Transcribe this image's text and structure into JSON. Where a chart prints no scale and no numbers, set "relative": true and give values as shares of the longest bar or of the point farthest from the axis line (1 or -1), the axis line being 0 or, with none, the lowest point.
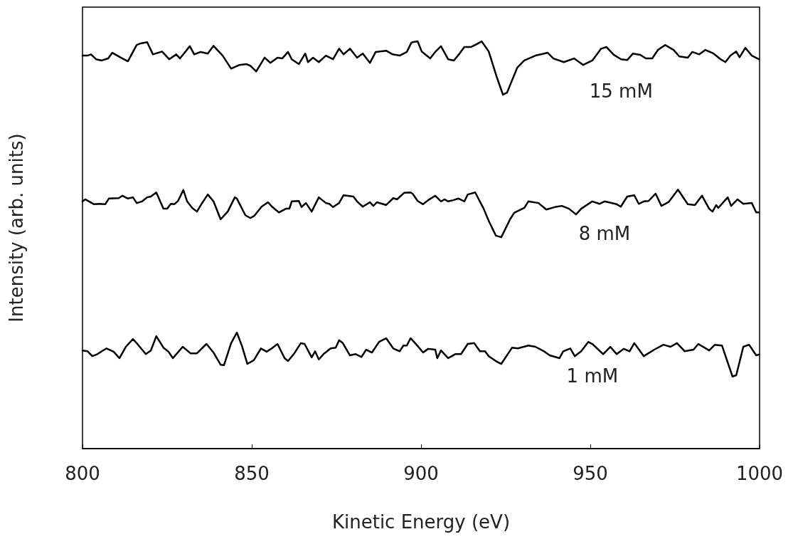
{
  "chart_data": {
    "type": "line",
    "xlabel": "Kinetic Energy (eV)",
    "ylabel": "Intensity (arb. units)",
    "relative": true,
    "marker": "none",
    "xlim": [
      800,
      1000
    ],
    "xticks": [
      800,
      850,
      900,
      950,
      1000
    ],
    "series": [
      {
        "name": "15 mM",
        "color": "#000000",
        "x": [
          800.0,
          801.5,
          802.5,
          804.0,
          805.7,
          807.6,
          808.8,
          811.3,
          813.4,
          816.0,
          817.2,
          819.1,
          820.8,
          823.5,
          825.6,
          827.7,
          828.8,
          831.7,
          833.0,
          834.9,
          837.0,
          838.7,
          841.4,
          843.9,
          846.4,
          848.5,
          849.6,
          851.3,
          853.8,
          855.5,
          857.6,
          859.0,
          860.7,
          861.8,
          863.9,
          865.8,
          866.6,
          868.1,
          869.8,
          871.9,
          874.0,
          875.8,
          877.1,
          879.0,
          881.1,
          882.8,
          884.9,
          886.6,
          889.7,
          891.6,
          893.7,
          895.8,
          897.1,
          897.5,
          899.0,
          900.2,
          902.7,
          904.2,
          905.9,
          908.0,
          909.7,
          911.1,
          912.8,
          914.7,
          916.0,
          917.9,
          920.0,
          922.3,
          924.2,
          925.4,
          928.4,
          930.5,
          933.8,
          937.4,
          939.1,
          942.2,
          945.2,
          947.9,
          950.6,
          953.2,
          954.8,
          956.9,
          959.1,
          960.9,
          962.6,
          964.7,
          966.4,
          968.3,
          970.0,
          972.1,
          974.6,
          976.3,
          978.8,
          980.1,
          982.2,
          984.0,
          986.4,
          988.5,
          989.9,
          991.4,
          993.1,
          994.1,
          995.8,
          997.7,
          999.8
        ],
        "values": [
          0.965,
          0.965,
          0.968,
          0.956,
          0.953,
          0.958,
          0.972,
          0.96,
          0.951,
          0.991,
          0.995,
          0.998,
          0.968,
          0.975,
          0.956,
          0.968,
          0.958,
          0.988,
          0.968,
          0.974,
          0.97,
          0.989,
          0.965,
          0.933,
          0.942,
          0.944,
          0.94,
          0.926,
          0.96,
          0.947,
          0.96,
          0.958,
          0.974,
          0.956,
          0.944,
          0.97,
          0.949,
          0.96,
          0.949,
          0.965,
          0.956,
          0.982,
          0.968,
          0.982,
          0.96,
          0.97,
          0.947,
          0.974,
          0.977,
          0.968,
          0.965,
          0.974,
          0.996,
          0.998,
          1.0,
          0.975,
          0.958,
          0.974,
          0.988,
          0.956,
          0.953,
          0.967,
          0.986,
          0.986,
          0.991,
          1.0,
          0.975,
          0.914,
          0.869,
          0.874,
          0.935,
          0.953,
          0.965,
          0.972,
          0.958,
          0.949,
          0.958,
          0.942,
          0.953,
          0.982,
          0.986,
          0.967,
          0.956,
          0.954,
          0.97,
          0.967,
          0.958,
          0.958,
          0.979,
          0.991,
          0.979,
          0.963,
          0.96,
          0.974,
          0.968,
          0.979,
          0.97,
          0.956,
          0.949,
          0.965,
          0.975,
          0.961,
          0.984,
          0.965,
          0.956
        ]
      },
      {
        "name": "8 mM",
        "color": "#000000",
        "x": [
          800.0,
          800.8,
          803.4,
          805.0,
          806.7,
          807.8,
          810.7,
          811.8,
          813.4,
          814.9,
          816.0,
          817.6,
          819.1,
          820.2,
          821.8,
          823.9,
          825.0,
          826.1,
          827.1,
          828.2,
          829.8,
          830.9,
          832.4,
          833.8,
          835.1,
          837.0,
          838.7,
          840.8,
          842.9,
          845.0,
          845.6,
          848.1,
          849.6,
          850.8,
          852.9,
          854.8,
          856.1,
          858.0,
          860.1,
          861.1,
          861.8,
          863.9,
          864.7,
          866.0,
          867.7,
          869.8,
          871.9,
          872.9,
          874.0,
          875.8,
          877.1,
          880.0,
          881.1,
          882.8,
          884.9,
          885.9,
          887.0,
          889.7,
          891.8,
          892.9,
          895.0,
          896.9,
          897.5,
          899.0,
          900.6,
          902.1,
          904.2,
          905.9,
          906.9,
          908.0,
          909.5,
          911.1,
          912.8,
          913.8,
          916.0,
          918.5,
          920.0,
          922.1,
          923.7,
          926.3,
          927.5,
          930.5,
          931.7,
          934.7,
          937.0,
          939.5,
          941.6,
          943.7,
          945.8,
          947.3,
          950.6,
          952.7,
          954.2,
          957.8,
          959.0,
          960.9,
          963.0,
          964.3,
          965.8,
          967.2,
          969.3,
          971.0,
          973.1,
          975.9,
          978.8,
          980.9,
          983.0,
          985.1,
          986.1,
          987.2,
          987.8,
          990.6,
          991.6,
          993.5,
          995.2,
          997.7,
          999.0,
          999.8
        ],
        "values": [
          0.607,
          0.612,
          0.6,
          0.601,
          0.6,
          0.614,
          0.615,
          0.621,
          0.614,
          0.617,
          0.603,
          0.607,
          0.617,
          0.619,
          0.629,
          0.589,
          0.589,
          0.601,
          0.6,
          0.608,
          0.635,
          0.607,
          0.591,
          0.582,
          0.6,
          0.624,
          0.607,
          0.563,
          0.582,
          0.617,
          0.614,
          0.573,
          0.566,
          0.572,
          0.594,
          0.605,
          0.593,
          0.58,
          0.589,
          0.589,
          0.607,
          0.608,
          0.593,
          0.603,
          0.582,
          0.617,
          0.603,
          0.601,
          0.593,
          0.603,
          0.622,
          0.619,
          0.607,
          0.594,
          0.605,
          0.596,
          0.605,
          0.598,
          0.615,
          0.612,
          0.628,
          0.629,
          0.626,
          0.608,
          0.6,
          0.61,
          0.621,
          0.607,
          0.612,
          0.607,
          0.61,
          0.614,
          0.607,
          0.624,
          0.629,
          0.589,
          0.559,
          0.523,
          0.519,
          0.563,
          0.579,
          0.591,
          0.607,
          0.603,
          0.587,
          0.593,
          0.596,
          0.589,
          0.575,
          0.589,
          0.607,
          0.601,
          0.607,
          0.6,
          0.594,
          0.619,
          0.622,
          0.601,
          0.607,
          0.608,
          0.626,
          0.596,
          0.605,
          0.636,
          0.6,
          0.598,
          0.621,
          0.589,
          0.582,
          0.598,
          0.591,
          0.617,
          0.596,
          0.612,
          0.601,
          0.603,
          0.58,
          0.58
        ]
      },
      {
        "name": "1 mM",
        "color": "#000000",
        "x": [
          800.0,
          801.5,
          802.9,
          804.4,
          805.7,
          807.1,
          809.2,
          810.9,
          812.8,
          814.9,
          816.2,
          818.7,
          820.2,
          821.8,
          823.9,
          825.4,
          826.7,
          829.6,
          831.9,
          833.8,
          836.6,
          838.7,
          840.8,
          841.8,
          843.9,
          845.6,
          847.1,
          848.7,
          850.6,
          852.7,
          854.4,
          855.9,
          857.6,
          859.7,
          860.7,
          862.4,
          864.5,
          865.6,
          867.7,
          868.7,
          869.8,
          871.2,
          873.3,
          874.8,
          875.8,
          876.9,
          879.0,
          880.7,
          882.4,
          883.8,
          885.5,
          887.6,
          889.7,
          891.8,
          893.7,
          894.8,
          895.8,
          896.9,
          897.5,
          899.0,
          900.6,
          902.1,
          904.2,
          904.8,
          905.9,
          908.0,
          910.1,
          911.8,
          913.8,
          915.7,
          917.4,
          918.9,
          920.0,
          922.1,
          923.7,
          926.9,
          928.6,
          931.7,
          933.8,
          936.3,
          938.0,
          940.9,
          942.0,
          944.1,
          945.4,
          947.3,
          949.4,
          950.6,
          953.8,
          955.9,
          957.8,
          959.9,
          961.6,
          963.0,
          965.8,
          968.9,
          971.6,
          973.7,
          975.6,
          977.9,
          980.5,
          981.9,
          985.1,
          986.8,
          988.9,
          992.0,
          993.1,
          995.2,
          996.9,
          999.0,
          999.8
        ],
        "values": [
          0.241,
          0.239,
          0.227,
          0.232,
          0.239,
          0.246,
          0.238,
          0.222,
          0.25,
          0.269,
          0.257,
          0.232,
          0.241,
          0.276,
          0.248,
          0.238,
          0.222,
          0.25,
          0.234,
          0.234,
          0.257,
          0.236,
          0.206,
          0.205,
          0.259,
          0.285,
          0.252,
          0.208,
          0.217,
          0.246,
          0.238,
          0.246,
          0.257,
          0.222,
          0.215,
          0.232,
          0.259,
          0.257,
          0.224,
          0.239,
          0.219,
          0.232,
          0.246,
          0.248,
          0.266,
          0.259,
          0.229,
          0.232,
          0.225,
          0.243,
          0.236,
          0.262,
          0.271,
          0.246,
          0.239,
          0.253,
          0.253,
          0.271,
          0.266,
          0.252,
          0.236,
          0.245,
          0.243,
          0.222,
          0.241,
          0.222,
          0.232,
          0.232,
          0.257,
          0.259,
          0.239,
          0.239,
          0.227,
          0.215,
          0.208,
          0.248,
          0.246,
          0.253,
          0.25,
          0.239,
          0.229,
          0.222,
          0.239,
          0.246,
          0.227,
          0.239,
          0.262,
          0.257,
          0.232,
          0.25,
          0.232,
          0.245,
          0.239,
          0.259,
          0.227,
          0.243,
          0.255,
          0.25,
          0.259,
          0.239,
          0.243,
          0.257,
          0.241,
          0.255,
          0.253,
          0.177,
          0.18,
          0.25,
          0.255,
          0.229,
          0.231
        ]
      }
    ]
  }
}
